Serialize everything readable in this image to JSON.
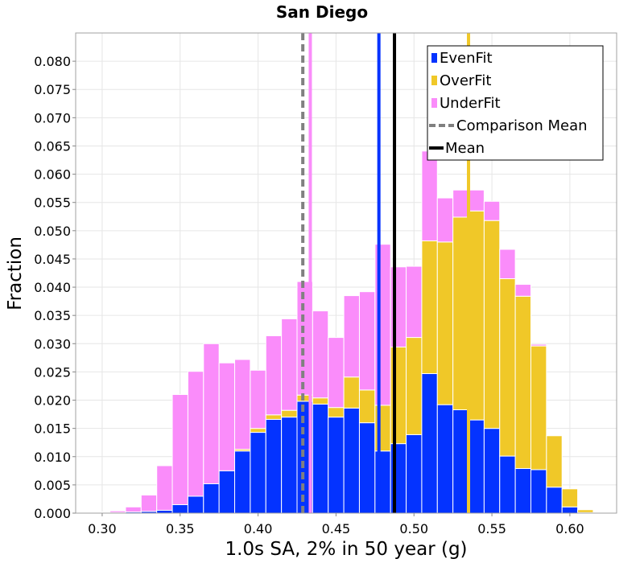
{
  "chart_data": {
    "type": "bar",
    "stacked": true,
    "title": "San Diego",
    "xlabel": "1.0s SA, 2% in 50 year (g)",
    "ylabel": "Fraction",
    "xlim": [
      0.283,
      0.63
    ],
    "ylim": [
      0,
      0.085
    ],
    "bin_width": 0.01,
    "x": [
      0.3,
      0.31,
      0.32,
      0.33,
      0.34,
      0.35,
      0.36,
      0.37,
      0.38,
      0.39,
      0.4,
      0.41,
      0.42,
      0.43,
      0.44,
      0.45,
      0.46,
      0.47,
      0.48,
      0.49,
      0.5,
      0.51,
      0.52,
      0.53,
      0.54,
      0.55,
      0.56,
      0.57,
      0.58,
      0.59,
      0.6,
      0.61
    ],
    "xticks": [
      "0.30",
      "0.35",
      "0.40",
      "0.45",
      "0.50",
      "0.55",
      "0.60"
    ],
    "yticks": [
      "0.000",
      "0.005",
      "0.010",
      "0.015",
      "0.020",
      "0.025",
      "0.030",
      "0.035",
      "0.040",
      "0.045",
      "0.050",
      "0.055",
      "0.060",
      "0.065",
      "0.070",
      "0.075",
      "0.080"
    ],
    "series": [
      {
        "name": "EvenFit",
        "color": "#0433ff",
        "values": [
          0.0001,
          0.0001,
          0.0002,
          0.0003,
          0.0005,
          0.0015,
          0.003,
          0.0052,
          0.0075,
          0.011,
          0.0143,
          0.0166,
          0.017,
          0.0198,
          0.0193,
          0.017,
          0.0186,
          0.016,
          0.011,
          0.0123,
          0.0139,
          0.0247,
          0.0192,
          0.0183,
          0.0165,
          0.015,
          0.0101,
          0.0079,
          0.0077,
          0.0046,
          0.0011,
          0.0001
        ]
      },
      {
        "name": "OverFit",
        "color": "#f0c828",
        "values": [
          0,
          0,
          0,
          0,
          0,
          0,
          0,
          0,
          0,
          0.0003,
          0.0007,
          0.0008,
          0.0012,
          0.0011,
          0.0011,
          0.0017,
          0.0055,
          0.0058,
          0.0081,
          0.0171,
          0.0172,
          0.0235,
          0.0288,
          0.0341,
          0.037,
          0.0368,
          0.0314,
          0.0305,
          0.0219,
          0.0091,
          0.0032,
          0.0005
        ]
      },
      {
        "name": "UnderFit",
        "color": "#fa8cfa",
        "values": [
          0.0001,
          0.0003,
          0.0009,
          0.0029,
          0.0079,
          0.0195,
          0.0221,
          0.0248,
          0.0191,
          0.0159,
          0.0103,
          0.014,
          0.0162,
          0.0201,
          0.0154,
          0.0124,
          0.0144,
          0.0174,
          0.0285,
          0.0142,
          0.0126,
          0.0159,
          0.0078,
          0.0048,
          0.0037,
          0.0034,
          0.0052,
          0.0021,
          0.0003,
          0,
          0,
          0
        ]
      }
    ],
    "vertical_lines": [
      {
        "series": "UnderFit",
        "x": 0.4335,
        "color": "#fa8cfa",
        "style": "solid"
      },
      {
        "series": "EvenFit",
        "x": 0.4775,
        "color": "#0433ff",
        "style": "solid"
      },
      {
        "series": "OverFit",
        "x": 0.535,
        "color": "#f0c828",
        "style": "solid"
      },
      {
        "series": "Comparison Mean",
        "x": 0.4287,
        "color": "#808080",
        "style": "dashed"
      },
      {
        "series": "Mean",
        "x": 0.4875,
        "color": "#000000",
        "style": "solid"
      }
    ],
    "legend": {
      "placement": "top-right",
      "entries": [
        {
          "label": "EvenFit",
          "kind": "box",
          "color": "#0433ff"
        },
        {
          "label": "OverFit",
          "kind": "box",
          "color": "#f0c828"
        },
        {
          "label": "UnderFit",
          "kind": "box",
          "color": "#fa8cfa"
        },
        {
          "label": "Comparison Mean",
          "kind": "dashed-line",
          "color": "#808080"
        },
        {
          "label": "Mean",
          "kind": "line",
          "color": "#000000"
        }
      ]
    },
    "grid": true
  }
}
